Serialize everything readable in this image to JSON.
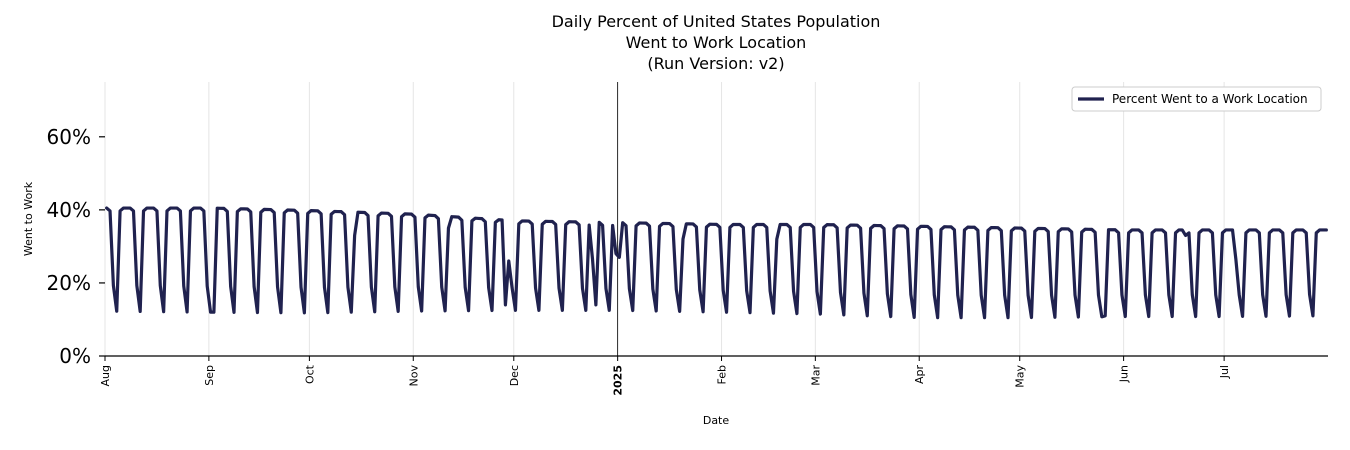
{
  "chart_data": {
    "type": "line",
    "title_lines": [
      "Daily Percent of United States Population",
      "Went to Work Location",
      "(Run Version: v2)"
    ],
    "xlabel": "Date",
    "ylabel": "Went to Work",
    "x_range": [
      "2024-08-01",
      "2025-07-31"
    ],
    "ylim": [
      0,
      75
    ],
    "yticks": [
      0,
      20,
      40,
      60
    ],
    "ytick_labels": [
      "0%",
      "20%",
      "40%",
      "60%"
    ],
    "xticks": [
      {
        "date": "2024-08-01",
        "label": "Aug",
        "bold": false
      },
      {
        "date": "2024-09-01",
        "label": "Sep",
        "bold": false
      },
      {
        "date": "2024-10-01",
        "label": "Oct",
        "bold": false
      },
      {
        "date": "2024-11-01",
        "label": "Nov",
        "bold": false
      },
      {
        "date": "2024-12-01",
        "label": "Dec",
        "bold": false
      },
      {
        "date": "2025-01-01",
        "label": "2025",
        "bold": true
      },
      {
        "date": "2025-02-01",
        "label": "Feb",
        "bold": false
      },
      {
        "date": "2025-03-01",
        "label": "Mar",
        "bold": false
      },
      {
        "date": "2025-04-01",
        "label": "Apr",
        "bold": false
      },
      {
        "date": "2025-05-01",
        "label": "May",
        "bold": false
      },
      {
        "date": "2025-06-01",
        "label": "Jun",
        "bold": false
      },
      {
        "date": "2025-07-01",
        "label": "Jul",
        "bold": false
      }
    ],
    "year_marker": "2025-01-01",
    "grid": "vertical",
    "legend": {
      "position": "top-right"
    },
    "colors": {
      "line": "#20224f",
      "grid": "#e5e5e5"
    },
    "series": [
      {
        "name": "Percent Went to a Work Location",
        "weekly_pattern": "weekday plateau with Saturday/Sunday dip",
        "points": [
          {
            "date": "2024-08-01",
            "weekday": 40.5,
            "weekend": 12.3
          },
          {
            "date": "2024-09-01",
            "weekday": 40.5,
            "weekend": 12.0
          },
          {
            "date": "2024-10-01",
            "weekday": 39.8,
            "weekend": 11.8
          },
          {
            "date": "2024-11-01",
            "weekday": 38.8,
            "weekend": 12.3
          },
          {
            "date": "2024-12-01",
            "weekday": 37.0,
            "weekend": 12.5
          },
          {
            "date": "2025-01-01",
            "weekday": 36.5,
            "weekend": 12.5
          },
          {
            "date": "2025-02-01",
            "weekday": 36.0,
            "weekend": 12.0
          },
          {
            "date": "2025-03-01",
            "weekday": 36.0,
            "weekend": 11.5
          },
          {
            "date": "2025-04-01",
            "weekday": 35.5,
            "weekend": 10.5
          },
          {
            "date": "2025-05-01",
            "weekday": 35.0,
            "weekend": 10.5
          },
          {
            "date": "2025-06-01",
            "weekday": 34.5,
            "weekend": 10.8
          },
          {
            "date": "2025-07-01",
            "weekday": 34.5,
            "weekend": 10.8
          },
          {
            "date": "2025-07-31",
            "weekday": 34.5,
            "weekend": 11.0
          }
        ],
        "holidays": [
          {
            "date": "2024-09-02",
            "value": 12.0
          },
          {
            "date": "2024-10-14",
            "value": 33.0
          },
          {
            "date": "2024-11-11",
            "value": 35.0
          },
          {
            "date": "2024-11-28",
            "value": 14.0
          },
          {
            "date": "2024-11-29",
            "value": 26.0
          },
          {
            "date": "2024-12-24",
            "value": 26.5
          },
          {
            "date": "2024-12-25",
            "value": 14.0
          },
          {
            "date": "2024-12-31",
            "value": 28.0
          },
          {
            "date": "2025-01-01",
            "value": 27.0
          },
          {
            "date": "2025-01-20",
            "value": 32.0
          },
          {
            "date": "2025-02-17",
            "value": 32.0
          },
          {
            "date": "2025-05-26",
            "value": 11.0
          },
          {
            "date": "2025-06-19",
            "value": 33.0
          },
          {
            "date": "2025-07-04",
            "value": 26.5
          }
        ]
      }
    ]
  }
}
